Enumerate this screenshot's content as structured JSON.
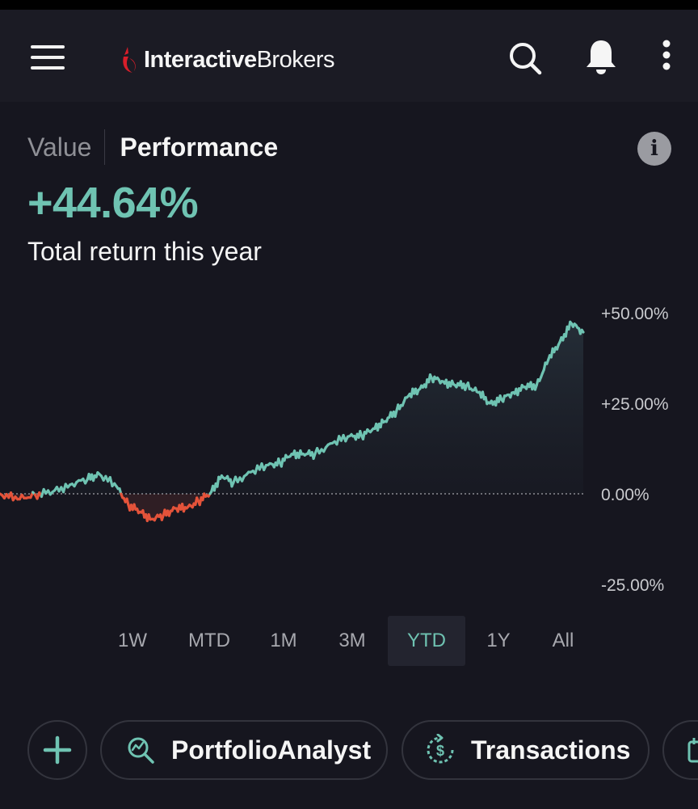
{
  "app": {
    "brand_bold": "Interactive",
    "brand_regular": "Brokers"
  },
  "tabs": {
    "value": "Value",
    "performance": "Performance"
  },
  "summary": {
    "return_value": "+44.64%",
    "subtitle": "Total return this year"
  },
  "ranges": [
    "1W",
    "MTD",
    "1M",
    "3M",
    "YTD",
    "1Y",
    "All"
  ],
  "active_range": "YTD",
  "actions": {
    "portfolio": "PortfolioAnalyst",
    "transactions": "Transactions"
  },
  "colors": {
    "positive": "#6fc3b2",
    "negative": "#e4533a",
    "background": "#16161f"
  },
  "icons": [
    "menu-icon",
    "search-icon",
    "bell-icon",
    "more-vertical-icon",
    "info-icon",
    "plus-icon",
    "analyze-icon",
    "transactions-icon",
    "calendar-icon"
  ],
  "chart_data": {
    "type": "line",
    "ylim": [
      -25,
      50
    ],
    "y_ticks": [
      "+50.00%",
      "+25.00%",
      "0.00%",
      "-25.00%"
    ],
    "baseline": 0,
    "x": [
      0,
      3,
      6,
      9,
      12,
      15,
      17,
      20,
      22,
      24,
      26,
      28,
      30,
      32,
      34,
      36,
      38,
      40,
      43,
      46,
      48,
      50,
      52,
      54,
      57,
      60,
      62,
      64,
      66,
      68,
      70,
      72,
      74,
      76,
      78,
      80,
      82,
      84,
      86,
      88,
      90,
      92,
      94,
      96,
      98,
      100
    ],
    "values": [
      0,
      -1.5,
      -0.2,
      0.5,
      2.5,
      4,
      5.5,
      2,
      -3,
      -5,
      -7,
      -6,
      -4,
      -4,
      -2,
      0,
      5,
      3,
      6,
      8,
      8.5,
      11,
      11,
      11,
      14,
      16,
      16,
      18,
      20,
      23,
      27,
      29,
      32,
      31,
      30,
      30,
      28,
      25,
      26,
      28,
      29.5,
      30,
      37,
      42,
      47,
      44.64
    ]
  }
}
